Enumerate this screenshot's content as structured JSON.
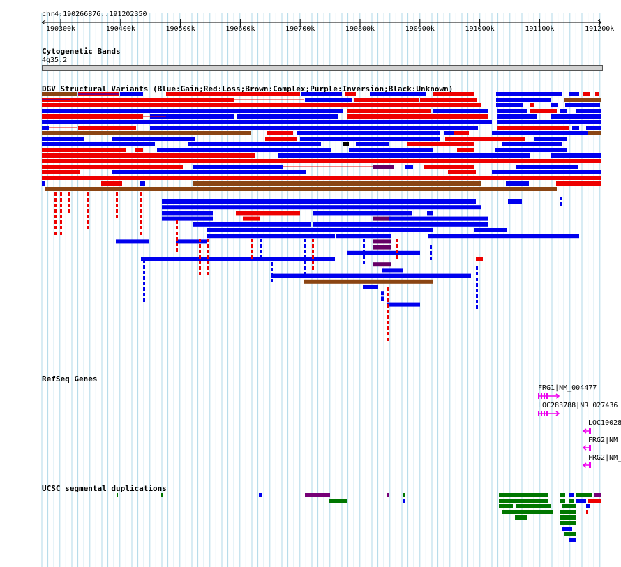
{
  "ruler": {
    "region": "chr4:190266876..191202350",
    "ticks": [
      "190300k",
      "190400k",
      "190500k",
      "190600k",
      "190700k",
      "190800k",
      "190900k",
      "191000k",
      "191100k",
      "191200k"
    ]
  },
  "tracks": {
    "cytobands": {
      "title": "Cytogenetic Bands",
      "band": "4q35.2"
    },
    "dgv": {
      "title": "DGV Structural Variants (Blue:Gain;Red:Loss;Brown:Complex;Purple:Inversion;Black:Unknown)"
    },
    "refseq": {
      "title": "RefSeq Genes",
      "genes": [
        "FRG1|NM_004477",
        "LOC283788|NR_027436",
        "LOC10028",
        "FRG2|NM_",
        "FRG2|NM_"
      ]
    },
    "segdups": {
      "title": "UCSC segmental duplications"
    }
  },
  "colors": {
    "gain": "#0000ee",
    "loss": "#ee0000",
    "complex": "#8b4513",
    "inversion": "#660066",
    "unknown": "#000000",
    "gene": "#ee00ee",
    "segdup_green": "#007700",
    "segdup_purple": "#770077",
    "gridline": "#b0d8e8"
  }
}
